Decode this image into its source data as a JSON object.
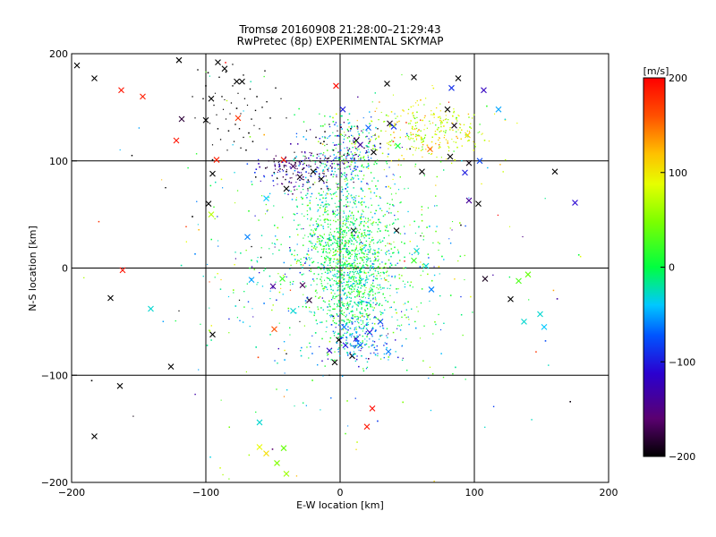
{
  "chart_data": {
    "type": "scatter",
    "title": "Tromsø 20160908 21:28:00–21:29:43",
    "subtitle": "RwPretec (8p) EXPERIMENTAL SKYMAP",
    "xlabel": "E-W location [km]",
    "ylabel": "N-S location [km]",
    "xlim": [
      -200,
      200
    ],
    "ylim": [
      -200,
      200
    ],
    "x_ticks": [
      -200,
      -100,
      0,
      100,
      200
    ],
    "y_ticks": [
      -200,
      -100,
      0,
      100,
      200
    ],
    "x_tick_labels": [
      "−200",
      "−100",
      "0",
      "100",
      "200"
    ],
    "y_tick_labels": [
      "−200",
      "−100",
      "0",
      "100",
      "200"
    ],
    "grid": true,
    "colorbar": {
      "label": "[m/s]",
      "range": [
        -200,
        200
      ],
      "ticks": [
        200,
        100,
        0,
        -100,
        -200
      ],
      "tick_labels": [
        "200",
        "100",
        "0",
        "−100",
        "−200"
      ],
      "colormap": "rainbow (black-purple-blue-cyan-green-yellow-orange-red)"
    },
    "series": [
      {
        "marker": "cross",
        "points": [
          [
            -196,
            189,
            -200
          ],
          [
            -183,
            177,
            -200
          ],
          [
            -163,
            166,
            190
          ],
          [
            -147,
            160,
            185
          ],
          [
            -120,
            194,
            -200
          ],
          [
            -122,
            119,
            190
          ],
          [
            -118,
            139,
            -180
          ],
          [
            -96,
            158,
            -200
          ],
          [
            -86,
            186,
            -200
          ],
          [
            -73,
            174,
            -200
          ],
          [
            -77,
            174,
            -200
          ],
          [
            -91,
            192,
            -200
          ],
          [
            -100,
            138,
            -200
          ],
          [
            -95,
            88,
            -200
          ],
          [
            -92,
            101,
            185
          ],
          [
            -76,
            140,
            175
          ],
          [
            -42,
            101,
            185
          ],
          [
            -98,
            60,
            -200
          ],
          [
            -96,
            50,
            70
          ],
          [
            -40,
            74,
            -200
          ],
          [
            -30,
            85,
            -190
          ],
          [
            -20,
            90,
            -200
          ],
          [
            -14,
            83,
            -200
          ],
          [
            -35,
            95,
            -170
          ],
          [
            -55,
            65,
            -40
          ],
          [
            -3,
            170,
            195
          ],
          [
            2,
            148,
            -100
          ],
          [
            12,
            119,
            -200
          ],
          [
            15,
            115,
            -130
          ],
          [
            21,
            131,
            -70
          ],
          [
            25,
            108,
            -200
          ],
          [
            35,
            172,
            -200
          ],
          [
            43,
            114,
            5
          ],
          [
            37,
            135,
            -190
          ],
          [
            40,
            132,
            -90
          ],
          [
            55,
            178,
            -200
          ],
          [
            61,
            90,
            -200
          ],
          [
            67,
            111,
            150
          ],
          [
            80,
            148,
            -200
          ],
          [
            85,
            133,
            -195
          ],
          [
            95,
            124,
            110
          ],
          [
            88,
            177,
            -200
          ],
          [
            82,
            104,
            -200
          ],
          [
            96,
            98,
            -195
          ],
          [
            104,
            100,
            -80
          ],
          [
            107,
            166,
            -120
          ],
          [
            93,
            89,
            -100
          ],
          [
            96,
            63,
            -140
          ],
          [
            103,
            60,
            -200
          ],
          [
            83,
            168,
            -90
          ],
          [
            108,
            -10,
            -190
          ],
          [
            118,
            148,
            -50
          ],
          [
            127,
            -29,
            -200
          ],
          [
            133,
            -12,
            30
          ],
          [
            140,
            -6,
            40
          ],
          [
            160,
            90,
            -200
          ],
          [
            175,
            61,
            -110
          ],
          [
            149,
            -43,
            -30
          ],
          [
            152,
            -55,
            -40
          ],
          [
            137,
            -50,
            -30
          ],
          [
            -162,
            -2,
            190
          ],
          [
            -171,
            -28,
            -200
          ],
          [
            -141,
            -38,
            -30
          ],
          [
            -126,
            -92,
            -200
          ],
          [
            -164,
            -110,
            -200
          ],
          [
            -183,
            -157,
            -200
          ],
          [
            -95,
            -62,
            -200
          ],
          [
            -49,
            -57,
            160
          ],
          [
            -50,
            -17,
            -140
          ],
          [
            -69,
            29,
            -60
          ],
          [
            -43,
            -10,
            20
          ],
          [
            -1,
            -67,
            -200
          ],
          [
            -4,
            -88,
            -200
          ],
          [
            9,
            -82,
            -195
          ],
          [
            -8,
            -77,
            -120
          ],
          [
            4,
            -72,
            -100
          ],
          [
            12,
            -66,
            -100
          ],
          [
            15,
            -72,
            -70
          ],
          [
            22,
            -60,
            -110
          ],
          [
            30,
            -50,
            -80
          ],
          [
            36,
            -78,
            -60
          ],
          [
            24,
            -131,
            195
          ],
          [
            20,
            -148,
            190
          ],
          [
            -60,
            -144,
            -30
          ],
          [
            -60,
            -167,
            90
          ],
          [
            -55,
            -173,
            105
          ],
          [
            -47,
            -182,
            50
          ],
          [
            -40,
            -192,
            60
          ],
          [
            -42,
            -168,
            40
          ],
          [
            -66,
            -11,
            -50
          ],
          [
            -28,
            -16,
            -170
          ],
          [
            -23,
            -30,
            -180
          ],
          [
            10,
            35,
            -190
          ],
          [
            42,
            35,
            -200
          ],
          [
            55,
            7,
            20
          ],
          [
            57,
            16,
            -30
          ],
          [
            64,
            2,
            -30
          ],
          [
            68,
            -20,
            -60
          ],
          [
            -35,
            -40,
            -30
          ],
          [
            3,
            -55,
            -60
          ]
        ]
      },
      {
        "marker": "dot",
        "points": [
          [
            -80,
            170,
            -200
          ],
          [
            -88,
            160,
            -200
          ],
          [
            -94,
            152,
            -200
          ],
          [
            -92,
            143,
            -200
          ],
          [
            -85,
            139,
            -200
          ],
          [
            -78,
            134,
            -200
          ],
          [
            -74,
            144,
            -200
          ],
          [
            -69,
            152,
            -200
          ],
          [
            -66,
            139,
            -200
          ],
          [
            -72,
            122,
            -200
          ],
          [
            -83,
            128,
            -200
          ],
          [
            -91,
            130,
            -200
          ],
          [
            -87,
            148,
            -200
          ],
          [
            -81,
            154,
            -200
          ],
          [
            -76,
            163,
            -200
          ],
          [
            -71,
            158,
            -200
          ],
          [
            -63,
            147,
            -200
          ],
          [
            -79,
            118,
            -200
          ],
          [
            -97,
            135,
            -200
          ],
          [
            -89,
            120,
            -200
          ],
          [
            -75,
            130,
            -200
          ],
          [
            -68,
            126,
            -200
          ],
          [
            -64,
            133,
            -200
          ],
          [
            -82,
            144,
            -200
          ],
          [
            -90,
            178,
            -200
          ],
          [
            -85,
            183,
            -200
          ],
          [
            -80,
            190,
            -200
          ],
          [
            -72,
            180,
            -200
          ],
          [
            -100,
            170,
            -200
          ],
          [
            -102,
            158,
            -200
          ],
          [
            -62,
            160,
            -200
          ],
          [
            -58,
            150,
            -200
          ],
          [
            -60,
            130,
            -200
          ],
          [
            -70,
            110,
            -200
          ],
          [
            -84,
            110,
            -200
          ],
          [
            -95,
            115,
            -200
          ],
          [
            -93,
            163,
            -200
          ],
          [
            -77,
            149,
            -200
          ],
          [
            -86,
            157,
            -200
          ],
          [
            -67,
            167,
            -200
          ],
          [
            -48,
            168,
            -200
          ],
          [
            -52,
            140,
            -200
          ],
          [
            -44,
            158,
            -200
          ],
          [
            -40,
            140,
            -200
          ],
          [
            -56,
            184,
            -200
          ],
          [
            -106,
            185,
            -200
          ],
          [
            -110,
            160,
            -200
          ],
          [
            -108,
            140,
            -200
          ],
          [
            -65,
            118,
            -200
          ],
          [
            -74,
            112,
            -200
          ],
          [
            -40,
            90,
            -200
          ],
          [
            -35,
            88,
            -190
          ],
          [
            -30,
            82,
            -200
          ],
          [
            -28,
            92,
            -195
          ],
          [
            -25,
            96,
            -190
          ],
          [
            -22,
            86,
            -200
          ],
          [
            -20,
            78,
            -195
          ],
          [
            -18,
            92,
            -200
          ],
          [
            -15,
            99,
            -200
          ],
          [
            -12,
            88,
            -190
          ],
          [
            -10,
            80,
            -200
          ],
          [
            -6,
            94,
            -185
          ],
          [
            -32,
            100,
            -185
          ],
          [
            -26,
            104,
            -200
          ],
          [
            -17,
            106,
            -180
          ],
          [
            -38,
            80,
            -190
          ],
          [
            -24,
            74,
            -200
          ],
          [
            -14,
            74,
            -200
          ],
          [
            -9,
            102,
            -200
          ],
          [
            -34,
            108,
            -200
          ],
          [
            -5,
            110,
            -200
          ],
          [
            0,
            115,
            -180
          ],
          [
            6,
            110,
            -190
          ],
          [
            10,
            118,
            -200
          ],
          [
            14,
            122,
            -170
          ],
          [
            18,
            112,
            -190
          ],
          [
            22,
            118,
            -200
          ],
          [
            26,
            124,
            -180
          ],
          [
            30,
            116,
            -200
          ],
          [
            12,
            106,
            -200
          ],
          [
            4,
            124,
            -180
          ],
          [
            -2,
            128,
            -190
          ],
          [
            8,
            130,
            -200
          ],
          [
            16,
            128,
            -160
          ],
          [
            20,
            108,
            -180
          ],
          [
            -12,
            118,
            -200
          ],
          [
            -18,
            122,
            -190
          ],
          [
            -25,
            128,
            -200
          ],
          [
            -8,
            134,
            -200
          ],
          [
            28,
            130,
            -200
          ],
          [
            -95,
            101,
            -200
          ],
          [
            -130,
            75,
            -200
          ],
          [
            -110,
            48,
            -200
          ],
          [
            -66,
            20,
            -200
          ],
          [
            -59,
            10,
            -200
          ],
          [
            -120,
            -40,
            -200
          ],
          [
            -40,
            -80,
            -200
          ],
          [
            -75,
            -30,
            -200
          ],
          [
            -30,
            -50,
            -200
          ],
          [
            90,
            40,
            -200
          ],
          [
            60,
            30,
            -200
          ],
          [
            -5,
            -45,
            -200
          ],
          [
            -8,
            -100,
            -200
          ],
          [
            -155,
            105,
            -200
          ],
          [
            -185,
            -105,
            -200
          ]
        ]
      },
      {
        "marker": "dot",
        "generated": "dense",
        "clusters": [
          {
            "cx": 5,
            "cy": 18,
            "sx": 16,
            "sy": 22,
            "n": 700,
            "vmean": 5,
            "vsd": 25
          },
          {
            "cx": 10,
            "cy": -30,
            "sx": 14,
            "sy": 22,
            "n": 420,
            "vmean": -10,
            "vsd": 25
          },
          {
            "cx": 15,
            "cy": -65,
            "sx": 13,
            "sy": 12,
            "n": 140,
            "vmean": -65,
            "vsd": 35
          },
          {
            "cx": 5,
            "cy": 108,
            "sx": 14,
            "sy": 16,
            "n": 260,
            "vmean": -40,
            "vsd": 60
          },
          {
            "cx": 65,
            "cy": 128,
            "sx": 22,
            "sy": 14,
            "n": 280,
            "vmean": 85,
            "vsd": 30
          },
          {
            "cx": -28,
            "cy": 92,
            "sx": 18,
            "sy": 10,
            "n": 160,
            "vmean": -140,
            "vsd": 45
          },
          {
            "cx": 0,
            "cy": 60,
            "sx": 22,
            "sy": 18,
            "n": 180,
            "vmean": 0,
            "vsd": 40
          },
          {
            "cx": -30,
            "cy": 10,
            "sx": 38,
            "sy": 55,
            "n": 260,
            "vmean": -20,
            "vsd": 50
          },
          {
            "cx": 40,
            "cy": 10,
            "sx": 30,
            "sy": 55,
            "n": 220,
            "vmean": 10,
            "vsd": 40
          },
          {
            "cx": 0,
            "cy": 0,
            "sx": 85,
            "sy": 95,
            "n": 200,
            "vmean": 0,
            "vsd": 90
          }
        ]
      }
    ]
  }
}
